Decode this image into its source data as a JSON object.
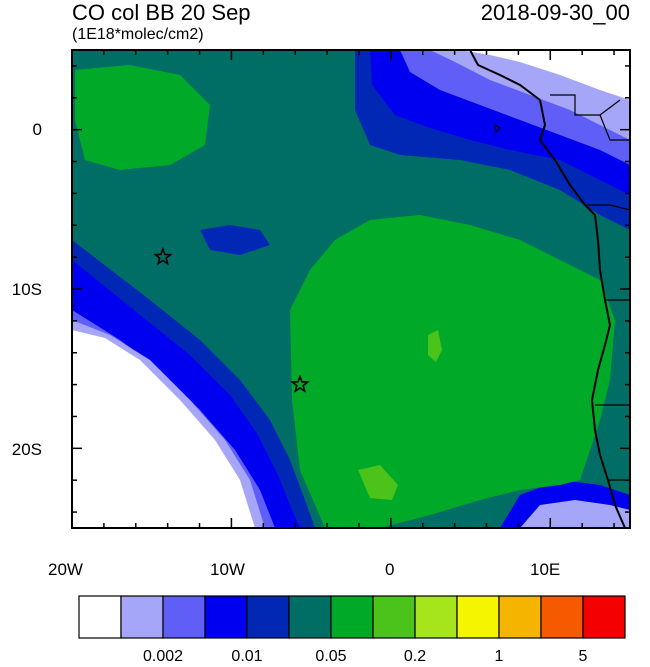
{
  "title": "CO col BB 20 Sep",
  "subtitle": "(1E18*molec/cm2)",
  "datetime": "2018-09-30_00",
  "x_ticks": [
    "20W",
    "10W",
    "0",
    "10E"
  ],
  "y_ticks": [
    "0",
    "10S",
    "20S"
  ],
  "colorbar": {
    "colors": [
      "#ffffff",
      "#a6a6f8",
      "#5f5ff8",
      "#0000f0",
      "#0028b4",
      "#006e64",
      "#00aa28",
      "#4cc31a",
      "#a6e41c",
      "#f5f500",
      "#f5b400",
      "#f55a00",
      "#f50000"
    ],
    "labels": [
      "0.002",
      "0.01",
      "0.05",
      "0.2",
      "1",
      "5"
    ]
  },
  "markers": [
    {
      "name": "star-marker-1",
      "lon": -14.3,
      "lat": -8.0
    },
    {
      "name": "star-marker-2",
      "lon": -5.7,
      "lat": -16.0
    }
  ]
}
